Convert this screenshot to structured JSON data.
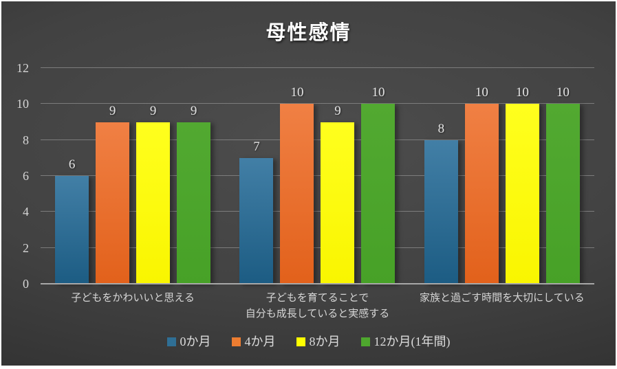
{
  "chart_data": {
    "type": "bar",
    "title": "母性感情",
    "categories": [
      "子どもをかわいいと思える",
      "子どもを育てることで\n自分も成長していると実感する",
      "家族と過ごす時間を大切にしている"
    ],
    "series": [
      {
        "name": "0か月",
        "values": [
          6,
          7,
          8
        ],
        "color": "#2f6f95",
        "color_top": "#427fa6",
        "color_bottom": "#1c5c83"
      },
      {
        "name": "4か月",
        "values": [
          9,
          10,
          10
        ],
        "color": "#ed7d31",
        "color_top": "#f08044",
        "color_bottom": "#e2611b"
      },
      {
        "name": "8か月",
        "values": [
          9,
          9,
          10
        ],
        "color": "#ffff00",
        "color_top": "#ffff1e",
        "color_bottom": "#f9f500"
      },
      {
        "name": "12か月(1年間)",
        "values": [
          9,
          10,
          10
        ],
        "color": "#4ea72e",
        "color_top": "#52a931",
        "color_bottom": "#47a127"
      }
    ],
    "ylim": [
      0,
      12
    ],
    "yticks": [
      0,
      2,
      4,
      6,
      8,
      10,
      12
    ],
    "grid": true,
    "legend_position": "bottom",
    "background": "dark-gray-radial",
    "colors": {
      "grid_line": "#8f8f8f",
      "axis_line": "#a8a8a8",
      "tick_label": "#d6d6d6",
      "data_label": "#e4e4e4",
      "title": "#ffffff"
    }
  }
}
